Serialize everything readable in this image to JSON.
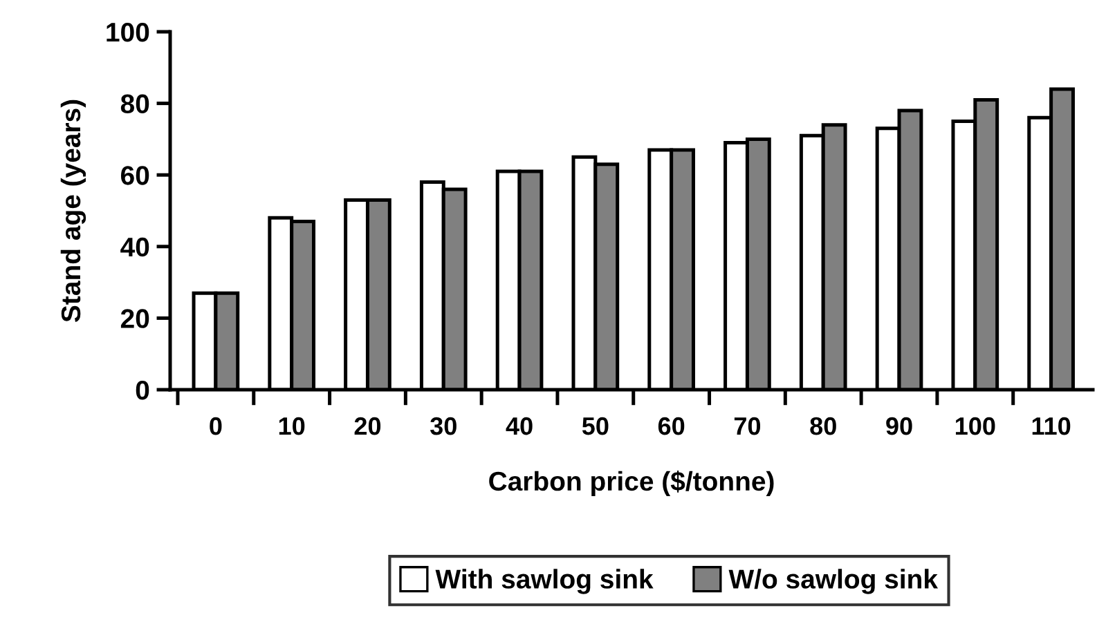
{
  "chart_data": {
    "type": "bar",
    "xlabel": "Carbon price ($/tonne)",
    "ylabel": "Stand age (years)",
    "categories": [
      "0",
      "10",
      "20",
      "30",
      "40",
      "50",
      "60",
      "70",
      "80",
      "90",
      "100",
      "110"
    ],
    "series": [
      {
        "name": "With sawlog sink",
        "color": "#ffffff",
        "values": [
          27,
          48,
          53,
          58,
          61,
          65,
          67,
          69,
          71,
          73,
          75,
          76
        ]
      },
      {
        "name": "W/o sawlog sink",
        "color": "#808080",
        "values": [
          27,
          47,
          53,
          56,
          61,
          63,
          67,
          70,
          74,
          78,
          81,
          84
        ]
      }
    ],
    "ylim": [
      0,
      100
    ],
    "yticks": [
      0,
      20,
      40,
      60,
      80,
      100
    ],
    "grid": false,
    "legend": "bottom"
  }
}
